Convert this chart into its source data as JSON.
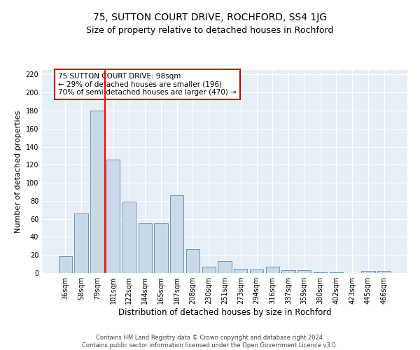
{
  "title": "75, SUTTON COURT DRIVE, ROCHFORD, SS4 1JG",
  "subtitle": "Size of property relative to detached houses in Rochford",
  "xlabel": "Distribution of detached houses by size in Rochford",
  "ylabel": "Number of detached properties",
  "categories": [
    "36sqm",
    "58sqm",
    "79sqm",
    "101sqm",
    "122sqm",
    "144sqm",
    "165sqm",
    "187sqm",
    "208sqm",
    "230sqm",
    "251sqm",
    "273sqm",
    "294sqm",
    "316sqm",
    "337sqm",
    "359sqm",
    "380sqm",
    "402sqm",
    "423sqm",
    "445sqm",
    "466sqm"
  ],
  "values": [
    19,
    66,
    180,
    126,
    79,
    55,
    55,
    86,
    26,
    7,
    13,
    5,
    4,
    7,
    3,
    3,
    1,
    1,
    0,
    2,
    2
  ],
  "bar_color": "#c9d9e8",
  "bar_edge_color": "#6699bb",
  "red_line_x": 2.5,
  "annotation_text": "75 SUTTON COURT DRIVE: 98sqm\n← 29% of detached houses are smaller (196)\n70% of semi-detached houses are larger (470) →",
  "annotation_box_color": "#ffffff",
  "annotation_box_edge": "#cc0000",
  "ylim": [
    0,
    225
  ],
  "yticks": [
    0,
    20,
    40,
    60,
    80,
    100,
    120,
    140,
    160,
    180,
    200,
    220
  ],
  "background_color": "#e8eef5",
  "footer_line1": "Contains HM Land Registry data © Crown copyright and database right 2024.",
  "footer_line2": "Contains public sector information licensed under the Open Government Licence v3.0.",
  "title_fontsize": 10,
  "subtitle_fontsize": 9,
  "xlabel_fontsize": 8.5,
  "ylabel_fontsize": 8,
  "tick_fontsize": 7,
  "annotation_fontsize": 7.5,
  "footer_fontsize": 6
}
